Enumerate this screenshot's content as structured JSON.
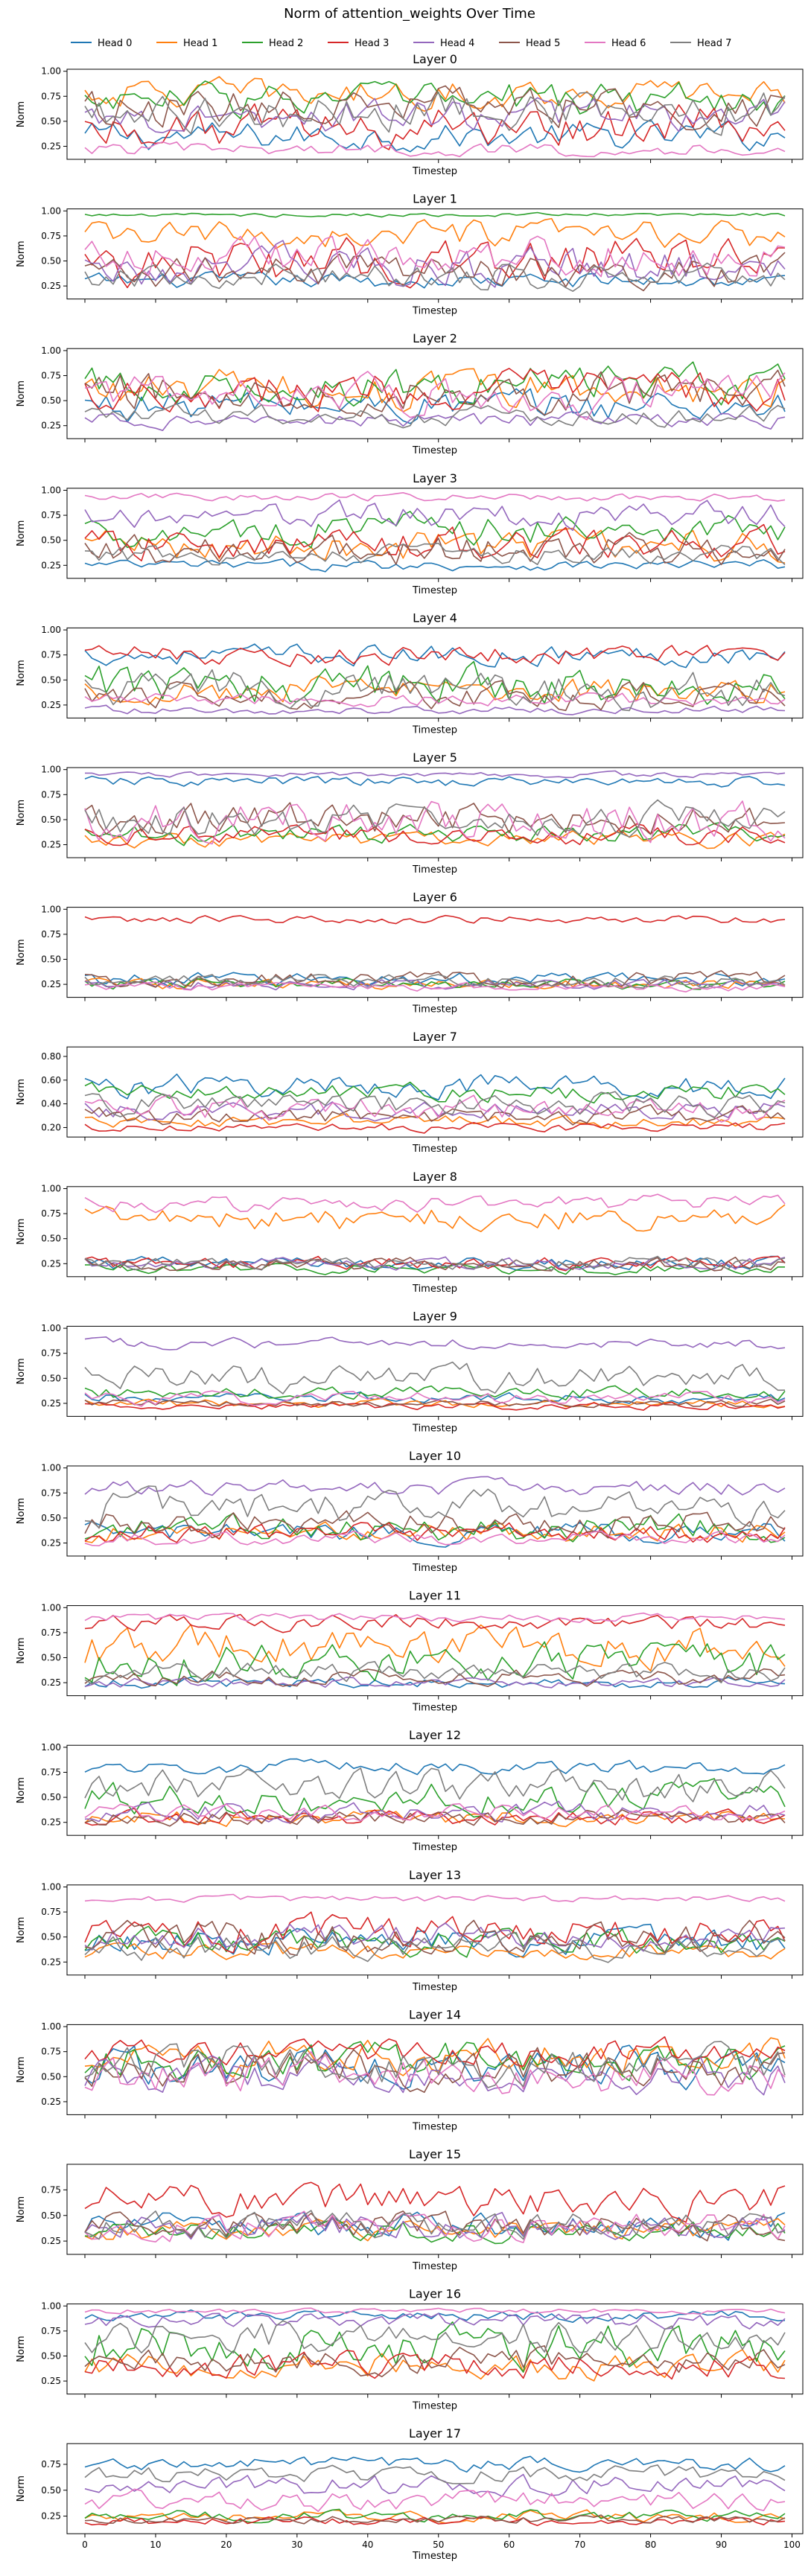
{
  "figure": {
    "title": "Norm of attention_weights Over Time"
  },
  "legend": {
    "placement": "top-center",
    "entries": [
      {
        "label": "Head 0",
        "color": "#1f77b4"
      },
      {
        "label": "Head 1",
        "color": "#ff7f0e"
      },
      {
        "label": "Head 2",
        "color": "#2ca02c"
      },
      {
        "label": "Head 3",
        "color": "#d62728"
      },
      {
        "label": "Head 4",
        "color": "#9467bd"
      },
      {
        "label": "Head 5",
        "color": "#8c564b"
      },
      {
        "label": "Head 6",
        "color": "#e377c2"
      },
      {
        "label": "Head 7",
        "color": "#7f7f7f"
      }
    ]
  },
  "chart_data": [
    {
      "type": "line",
      "title": "Layer 0",
      "xlabel": "Timestep",
      "ylabel": "Norm",
      "xlim": [
        0,
        99
      ],
      "ylim": [
        0.12,
        1.02
      ],
      "yticks": [
        0.25,
        0.5,
        0.75,
        1.0
      ],
      "heads": [
        {
          "mean": 0.35,
          "amp": 0.22
        },
        {
          "mean": 0.78,
          "amp": 0.22
        },
        {
          "mean": 0.72,
          "amp": 0.28
        },
        {
          "mean": 0.45,
          "amp": 0.32
        },
        {
          "mean": 0.55,
          "amp": 0.25
        },
        {
          "mean": 0.65,
          "amp": 0.3
        },
        {
          "mean": 0.22,
          "amp": 0.1
        },
        {
          "mean": 0.6,
          "amp": 0.3
        }
      ]
    },
    {
      "type": "line",
      "title": "Layer 1",
      "xlabel": "Timestep",
      "ylabel": "Norm",
      "xlim": [
        0,
        99
      ],
      "ylim": [
        0.12,
        1.02
      ],
      "yticks": [
        0.25,
        0.5,
        0.75,
        1.0
      ],
      "heads": [
        {
          "mean": 0.3,
          "amp": 0.12
        },
        {
          "mean": 0.75,
          "amp": 0.22
        },
        {
          "mean": 0.96,
          "amp": 0.03
        },
        {
          "mean": 0.5,
          "amp": 0.35
        },
        {
          "mean": 0.45,
          "amp": 0.3
        },
        {
          "mean": 0.4,
          "amp": 0.25
        },
        {
          "mean": 0.55,
          "amp": 0.3
        },
        {
          "mean": 0.35,
          "amp": 0.2
        }
      ]
    },
    {
      "type": "line",
      "title": "Layer 2",
      "xlabel": "Timestep",
      "ylabel": "Norm",
      "xlim": [
        0,
        99
      ],
      "ylim": [
        0.12,
        1.02
      ],
      "yticks": [
        0.25,
        0.5,
        0.75,
        1.0
      ],
      "heads": [
        {
          "mean": 0.45,
          "amp": 0.25
        },
        {
          "mean": 0.6,
          "amp": 0.3
        },
        {
          "mean": 0.65,
          "amp": 0.3
        },
        {
          "mean": 0.6,
          "amp": 0.3
        },
        {
          "mean": 0.3,
          "amp": 0.12
        },
        {
          "mean": 0.6,
          "amp": 0.3
        },
        {
          "mean": 0.55,
          "amp": 0.3
        },
        {
          "mean": 0.35,
          "amp": 0.15
        }
      ]
    },
    {
      "type": "line",
      "title": "Layer 3",
      "xlabel": "Timestep",
      "ylabel": "Norm",
      "xlim": [
        0,
        99
      ],
      "ylim": [
        0.12,
        1.02
      ],
      "yticks": [
        0.25,
        0.5,
        0.75,
        1.0
      ],
      "heads": [
        {
          "mean": 0.25,
          "amp": 0.08
        },
        {
          "mean": 0.45,
          "amp": 0.25
        },
        {
          "mean": 0.6,
          "amp": 0.25
        },
        {
          "mean": 0.45,
          "amp": 0.25
        },
        {
          "mean": 0.75,
          "amp": 0.2
        },
        {
          "mean": 0.4,
          "amp": 0.25
        },
        {
          "mean": 0.93,
          "amp": 0.06
        },
        {
          "mean": 0.35,
          "amp": 0.15
        }
      ]
    },
    {
      "type": "line",
      "title": "Layer 4",
      "xlabel": "Timestep",
      "ylabel": "Norm",
      "xlim": [
        0,
        99
      ],
      "ylim": [
        0.12,
        1.02
      ],
      "yticks": [
        0.25,
        0.5,
        0.75,
        1.0
      ],
      "heads": [
        {
          "mean": 0.75,
          "amp": 0.15
        },
        {
          "mean": 0.4,
          "amp": 0.2
        },
        {
          "mean": 0.45,
          "amp": 0.3
        },
        {
          "mean": 0.75,
          "amp": 0.15
        },
        {
          "mean": 0.2,
          "amp": 0.06
        },
        {
          "mean": 0.35,
          "amp": 0.2
        },
        {
          "mean": 0.3,
          "amp": 0.1
        },
        {
          "mean": 0.4,
          "amp": 0.3
        }
      ]
    },
    {
      "type": "line",
      "title": "Layer 5",
      "xlabel": "Timestep",
      "ylabel": "Norm",
      "xlim": [
        0,
        99
      ],
      "ylim": [
        0.12,
        1.02
      ],
      "yticks": [
        0.25,
        0.5,
        0.75,
        1.0
      ],
      "heads": [
        {
          "mean": 0.88,
          "amp": 0.08
        },
        {
          "mean": 0.3,
          "amp": 0.12
        },
        {
          "mean": 0.35,
          "amp": 0.15
        },
        {
          "mean": 0.35,
          "amp": 0.15
        },
        {
          "mean": 0.95,
          "amp": 0.04
        },
        {
          "mean": 0.5,
          "amp": 0.25
        },
        {
          "mean": 0.5,
          "amp": 0.3
        },
        {
          "mean": 0.5,
          "amp": 0.25
        }
      ]
    },
    {
      "type": "line",
      "title": "Layer 6",
      "xlabel": "Timestep",
      "ylabel": "Norm",
      "xlim": [
        0,
        99
      ],
      "ylim": [
        0.12,
        1.02
      ],
      "yticks": [
        0.25,
        0.5,
        0.75,
        1.0
      ],
      "heads": [
        {
          "mean": 0.3,
          "amp": 0.1
        },
        {
          "mean": 0.25,
          "amp": 0.08
        },
        {
          "mean": 0.25,
          "amp": 0.08
        },
        {
          "mean": 0.9,
          "amp": 0.06
        },
        {
          "mean": 0.25,
          "amp": 0.08
        },
        {
          "mean": 0.3,
          "amp": 0.12
        },
        {
          "mean": 0.22,
          "amp": 0.06
        },
        {
          "mean": 0.28,
          "amp": 0.1
        }
      ]
    },
    {
      "type": "line",
      "title": "Layer 7",
      "xlabel": "Timestep",
      "ylabel": "Norm",
      "xlim": [
        0,
        99
      ],
      "ylim": [
        0.12,
        0.88
      ],
      "yticks": [
        0.2,
        0.4,
        0.6,
        0.8
      ],
      "heads": [
        {
          "mean": 0.55,
          "amp": 0.15
        },
        {
          "mean": 0.25,
          "amp": 0.08
        },
        {
          "mean": 0.5,
          "amp": 0.12
        },
        {
          "mean": 0.2,
          "amp": 0.06
        },
        {
          "mean": 0.35,
          "amp": 0.12
        },
        {
          "mean": 0.3,
          "amp": 0.12
        },
        {
          "mean": 0.35,
          "amp": 0.15
        },
        {
          "mean": 0.4,
          "amp": 0.15
        }
      ]
    },
    {
      "type": "line",
      "title": "Layer 8",
      "xlabel": "Timestep",
      "ylabel": "Norm",
      "xlim": [
        0,
        99
      ],
      "ylim": [
        0.12,
        1.02
      ],
      "yticks": [
        0.25,
        0.5,
        0.75,
        1.0
      ],
      "heads": [
        {
          "mean": 0.25,
          "amp": 0.1
        },
        {
          "mean": 0.7,
          "amp": 0.2
        },
        {
          "mean": 0.2,
          "amp": 0.08
        },
        {
          "mean": 0.25,
          "amp": 0.1
        },
        {
          "mean": 0.25,
          "amp": 0.1
        },
        {
          "mean": 0.25,
          "amp": 0.1
        },
        {
          "mean": 0.85,
          "amp": 0.12
        },
        {
          "mean": 0.25,
          "amp": 0.1
        }
      ]
    },
    {
      "type": "line",
      "title": "Layer 9",
      "xlabel": "Timestep",
      "ylabel": "Norm",
      "xlim": [
        0,
        99
      ],
      "ylim": [
        0.12,
        1.02
      ],
      "yticks": [
        0.25,
        0.5,
        0.75,
        1.0
      ],
      "heads": [
        {
          "mean": 0.3,
          "amp": 0.08
        },
        {
          "mean": 0.25,
          "amp": 0.06
        },
        {
          "mean": 0.35,
          "amp": 0.1
        },
        {
          "mean": 0.22,
          "amp": 0.05
        },
        {
          "mean": 0.85,
          "amp": 0.08
        },
        {
          "mean": 0.25,
          "amp": 0.06
        },
        {
          "mean": 0.3,
          "amp": 0.1
        },
        {
          "mean": 0.5,
          "amp": 0.2
        }
      ]
    },
    {
      "type": "line",
      "title": "Layer 10",
      "xlabel": "Timestep",
      "ylabel": "Norm",
      "xlim": [
        0,
        99
      ],
      "ylim": [
        0.12,
        1.02
      ],
      "yticks": [
        0.25,
        0.5,
        0.75,
        1.0
      ],
      "heads": [
        {
          "mean": 0.35,
          "amp": 0.15
        },
        {
          "mean": 0.35,
          "amp": 0.15
        },
        {
          "mean": 0.4,
          "amp": 0.2
        },
        {
          "mean": 0.35,
          "amp": 0.15
        },
        {
          "mean": 0.8,
          "amp": 0.12
        },
        {
          "mean": 0.45,
          "amp": 0.2
        },
        {
          "mean": 0.3,
          "amp": 0.1
        },
        {
          "mean": 0.6,
          "amp": 0.25
        }
      ]
    },
    {
      "type": "line",
      "title": "Layer 11",
      "xlabel": "Timestep",
      "ylabel": "Norm",
      "xlim": [
        0,
        99
      ],
      "ylim": [
        0.12,
        1.02
      ],
      "yticks": [
        0.25,
        0.5,
        0.75,
        1.0
      ],
      "heads": [
        {
          "mean": 0.25,
          "amp": 0.08
        },
        {
          "mean": 0.6,
          "amp": 0.3
        },
        {
          "mean": 0.45,
          "amp": 0.3
        },
        {
          "mean": 0.85,
          "amp": 0.12
        },
        {
          "mean": 0.25,
          "amp": 0.08
        },
        {
          "mean": 0.3,
          "amp": 0.12
        },
        {
          "mean": 0.9,
          "amp": 0.06
        },
        {
          "mean": 0.35,
          "amp": 0.15
        }
      ]
    },
    {
      "type": "line",
      "title": "Layer 12",
      "xlabel": "Timestep",
      "ylabel": "Norm",
      "xlim": [
        0,
        99
      ],
      "ylim": [
        0.12,
        1.02
      ],
      "yticks": [
        0.25,
        0.5,
        0.75,
        1.0
      ],
      "heads": [
        {
          "mean": 0.8,
          "amp": 0.1
        },
        {
          "mean": 0.3,
          "amp": 0.12
        },
        {
          "mean": 0.5,
          "amp": 0.25
        },
        {
          "mean": 0.3,
          "amp": 0.12
        },
        {
          "mean": 0.35,
          "amp": 0.15
        },
        {
          "mean": 0.3,
          "amp": 0.12
        },
        {
          "mean": 0.35,
          "amp": 0.12
        },
        {
          "mean": 0.6,
          "amp": 0.25
        }
      ]
    },
    {
      "type": "line",
      "title": "Layer 13",
      "xlabel": "Timestep",
      "ylabel": "Norm",
      "xlim": [
        0,
        99
      ],
      "ylim": [
        0.12,
        1.02
      ],
      "yticks": [
        0.25,
        0.5,
        0.75,
        1.0
      ],
      "heads": [
        {
          "mean": 0.45,
          "amp": 0.2
        },
        {
          "mean": 0.35,
          "amp": 0.12
        },
        {
          "mean": 0.45,
          "amp": 0.2
        },
        {
          "mean": 0.55,
          "amp": 0.25
        },
        {
          "mean": 0.5,
          "amp": 0.2
        },
        {
          "mean": 0.5,
          "amp": 0.25
        },
        {
          "mean": 0.88,
          "amp": 0.05
        },
        {
          "mean": 0.4,
          "amp": 0.2
        }
      ]
    },
    {
      "type": "line",
      "title": "Layer 14",
      "xlabel": "Timestep",
      "ylabel": "Norm",
      "xlim": [
        0,
        99
      ],
      "ylim": [
        0.12,
        1.02
      ],
      "yticks": [
        0.25,
        0.5,
        0.75,
        1.0
      ],
      "heads": [
        {
          "mean": 0.6,
          "amp": 0.3
        },
        {
          "mean": 0.7,
          "amp": 0.25
        },
        {
          "mean": 0.65,
          "amp": 0.3
        },
        {
          "mean": 0.75,
          "amp": 0.2
        },
        {
          "mean": 0.5,
          "amp": 0.25
        },
        {
          "mean": 0.6,
          "amp": 0.3
        },
        {
          "mean": 0.5,
          "amp": 0.3
        },
        {
          "mean": 0.6,
          "amp": 0.3
        }
      ]
    },
    {
      "type": "line",
      "title": "Layer 15",
      "xlabel": "Timestep",
      "ylabel": "Norm",
      "xlim": [
        0,
        99
      ],
      "ylim": [
        0.12,
        1.0
      ],
      "yticks": [
        0.25,
        0.5,
        0.75
      ],
      "heads": [
        {
          "mean": 0.4,
          "amp": 0.2
        },
        {
          "mean": 0.35,
          "amp": 0.15
        },
        {
          "mean": 0.35,
          "amp": 0.15
        },
        {
          "mean": 0.65,
          "amp": 0.25
        },
        {
          "mean": 0.4,
          "amp": 0.2
        },
        {
          "mean": 0.4,
          "amp": 0.2
        },
        {
          "mean": 0.4,
          "amp": 0.2
        },
        {
          "mean": 0.4,
          "amp": 0.2
        }
      ]
    },
    {
      "type": "line",
      "title": "Layer 16",
      "xlabel": "Timestep",
      "ylabel": "Norm",
      "xlim": [
        0,
        99
      ],
      "ylim": [
        0.12,
        1.02
      ],
      "yticks": [
        0.25,
        0.5,
        0.75,
        1.0
      ],
      "heads": [
        {
          "mean": 0.9,
          "amp": 0.08
        },
        {
          "mean": 0.4,
          "amp": 0.2
        },
        {
          "mean": 0.6,
          "amp": 0.35
        },
        {
          "mean": 0.4,
          "amp": 0.2
        },
        {
          "mean": 0.85,
          "amp": 0.12
        },
        {
          "mean": 0.45,
          "amp": 0.2
        },
        {
          "mean": 0.95,
          "amp": 0.04
        },
        {
          "mean": 0.7,
          "amp": 0.25
        }
      ]
    },
    {
      "type": "line",
      "title": "Layer 17",
      "xlabel": "Timestep",
      "ylabel": "Norm",
      "xlim": [
        0,
        99
      ],
      "ylim": [
        0.08,
        0.95
      ],
      "yticks": [
        0.25,
        0.5,
        0.75
      ],
      "heads": [
        {
          "mean": 0.75,
          "amp": 0.1
        },
        {
          "mean": 0.25,
          "amp": 0.08
        },
        {
          "mean": 0.25,
          "amp": 0.08
        },
        {
          "mean": 0.2,
          "amp": 0.06
        },
        {
          "mean": 0.55,
          "amp": 0.15
        },
        {
          "mean": 0.22,
          "amp": 0.06
        },
        {
          "mean": 0.4,
          "amp": 0.15
        },
        {
          "mean": 0.65,
          "amp": 0.12
        }
      ]
    }
  ]
}
